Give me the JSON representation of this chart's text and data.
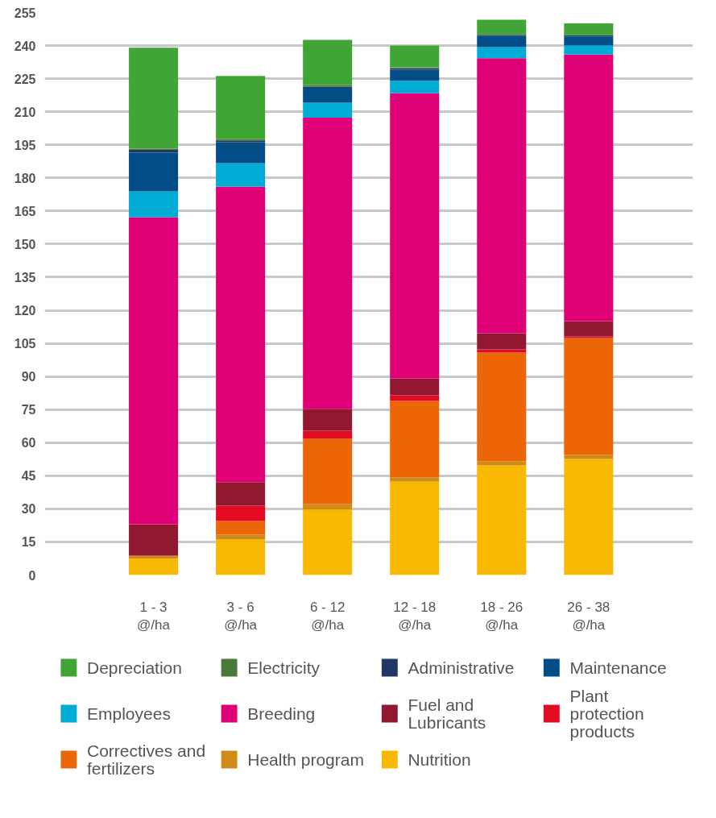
{
  "chart_data": {
    "type": "bar",
    "stacked": true,
    "categories": [
      "1 - 3 @/ha",
      "3 - 6 @/ha",
      "6 - 12 @/ha",
      "12 - 18 @/ha",
      "18 - 26 @/ha",
      "26 - 38 @/ha"
    ],
    "series": [
      {
        "name": "Nutrition",
        "color": "#f9b900",
        "values": [
          7.4,
          16.1,
          29.7,
          42.4,
          49.7,
          52.6
        ]
      },
      {
        "name": "Health program",
        "color": "#d08a16",
        "values": [
          1.4,
          2.2,
          2.5,
          1.8,
          1.8,
          1.8
        ]
      },
      {
        "name": "Correctives and fertilizers",
        "color": "#ec6608",
        "values": [
          0,
          6.2,
          29.5,
          34.7,
          49.3,
          53.0
        ]
      },
      {
        "name": "Plant protection products",
        "color": "#e30a23",
        "values": [
          0,
          6.9,
          3.7,
          2.6,
          1.5,
          0.7
        ]
      },
      {
        "name": "Fuel and Lubricants",
        "color": "#921730",
        "values": [
          14.2,
          10.7,
          9.9,
          7.6,
          7.3,
          7.0
        ]
      },
      {
        "name": "Breeding",
        "color": "#df0077",
        "values": [
          139.2,
          134.0,
          132.0,
          129.4,
          124.7,
          120.9
        ]
      },
      {
        "name": "Employees",
        "color": "#00acd6",
        "values": [
          11.7,
          10.6,
          6.8,
          5.5,
          5.0,
          4.0
        ]
      },
      {
        "name": "Maintenance",
        "color": "#034d87",
        "values": [
          17.5,
          9.5,
          6.7,
          5.1,
          5.2,
          4.1
        ]
      },
      {
        "name": "Administrative",
        "color": "#1f3864",
        "values": [
          1.3,
          0.8,
          0.6,
          0.7,
          0.4,
          0.7
        ]
      },
      {
        "name": "Electricity",
        "color": "#4a7a3a",
        "values": [
          0.6,
          0.6,
          0.7,
          0.4,
          0.3,
          null
        ]
      },
      {
        "name": "Depreciation",
        "color": "#41a535",
        "values": [
          45.7,
          28.6,
          20.5,
          9.8,
          6.5,
          5.3
        ]
      }
    ],
    "ylim": [
      0,
      255
    ],
    "yticks": [
      0,
      15,
      30,
      45,
      60,
      75,
      90,
      105,
      120,
      135,
      150,
      165,
      180,
      195,
      210,
      225,
      240,
      255
    ],
    "grid": "y",
    "legend": "bottom"
  }
}
